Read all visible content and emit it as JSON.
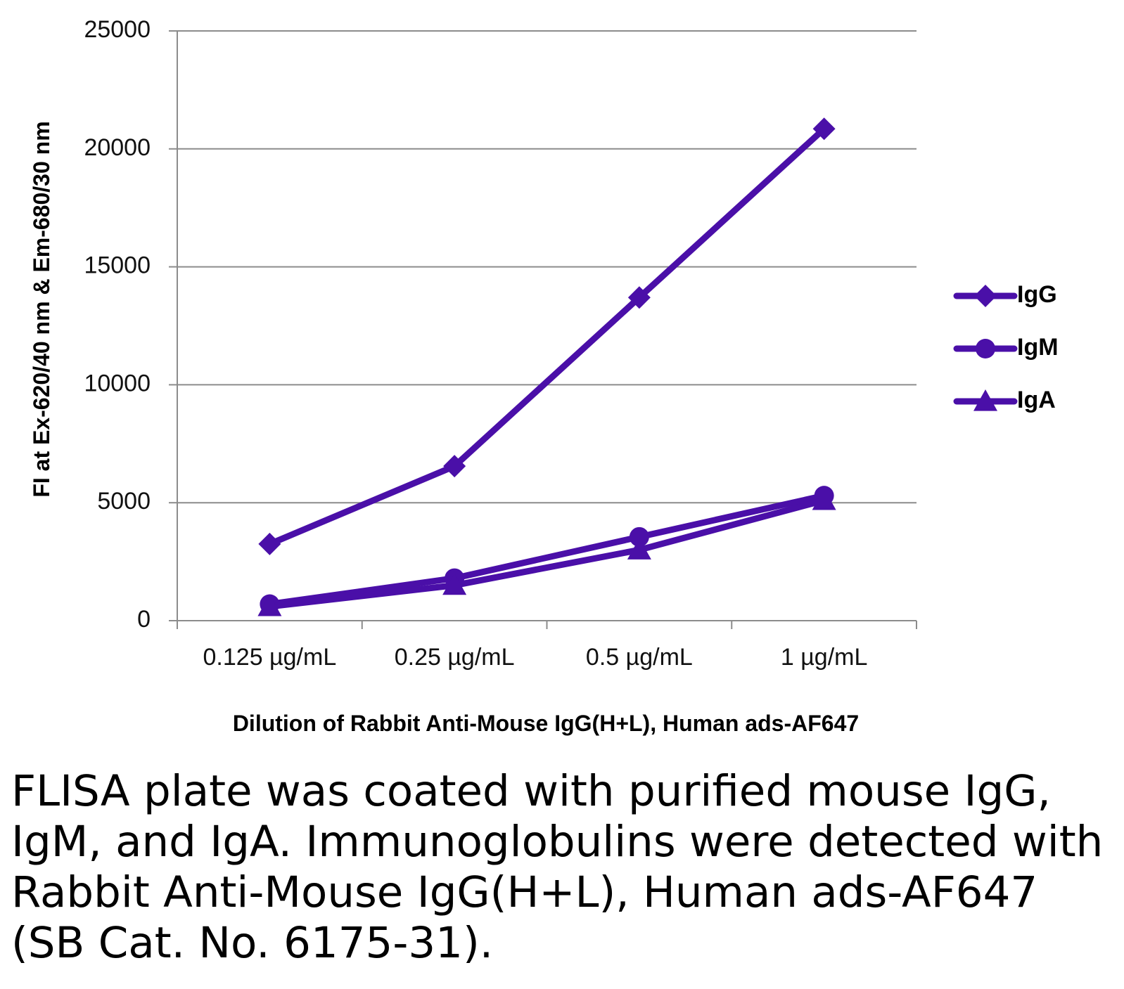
{
  "chart_data": {
    "type": "line",
    "title": "",
    "xlabel": "Dilution of Rabbit Anti-Mouse IgG(H+L), Human ads-AF647",
    "ylabel": "FI at Ex-620/40 nm & Em-680/30 nm",
    "categories": [
      "0.125 µg/mL",
      "0.25 µg/mL",
      "0.5 µg/mL",
      "1 µg/mL"
    ],
    "ylim": [
      0,
      25000
    ],
    "yticks": [
      0,
      5000,
      10000,
      15000,
      20000,
      25000
    ],
    "grid": true,
    "legend_position": "right",
    "series": [
      {
        "name": "IgG",
        "marker": "diamond",
        "values": [
          3250,
          6550,
          13700,
          20850
        ]
      },
      {
        "name": "IgM",
        "marker": "circle",
        "values": [
          700,
          1800,
          3550,
          5300
        ]
      },
      {
        "name": "IgA",
        "marker": "triangle",
        "values": [
          600,
          1500,
          3000,
          5100
        ]
      }
    ],
    "line_color": "#4a0fa8"
  },
  "caption": "FLISA plate was coated with purified mouse IgG, IgM, and IgA.  Immunoglobulins were detected with Rabbit Anti-Mouse IgG(H+L), Human ads-AF647 (SB Cat. No. 6175-31)."
}
